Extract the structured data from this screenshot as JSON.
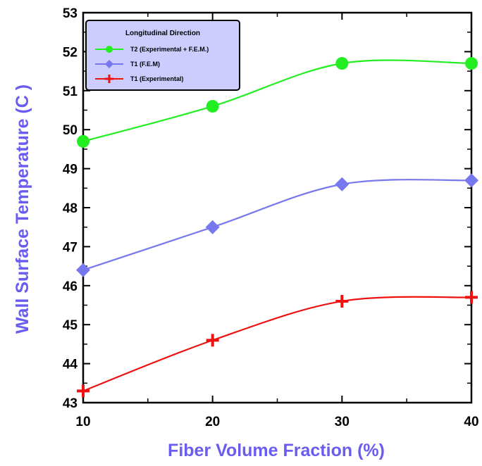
{
  "chart_data": {
    "type": "line",
    "title": "",
    "xlabel": "Fiber Volume Fraction (%)",
    "ylabel": "Wall Surface Temperature (C )",
    "xlim": [
      10,
      40
    ],
    "ylim": [
      43,
      53
    ],
    "x_ticks": [
      "10",
      "20",
      "30",
      "40"
    ],
    "y_ticks": [
      "43",
      "44",
      "45",
      "46",
      "47",
      "48",
      "49",
      "50",
      "51",
      "52",
      "53"
    ],
    "grid": false,
    "legend": {
      "title": "Longitudinal Direction",
      "position": "top-left"
    },
    "colors": {
      "axis_title": "#6a5cf0",
      "legend_bg": "#ccccff"
    },
    "series": [
      {
        "name": "T2 (Experimental + F.E.M.)",
        "marker": "circle",
        "color": "#22ee22",
        "x": [
          10,
          20,
          30,
          40
        ],
        "y": [
          49.7,
          50.6,
          51.7,
          51.7
        ]
      },
      {
        "name": "T1 (F.E.M)",
        "marker": "diamond",
        "color": "#7777ee",
        "x": [
          10,
          20,
          30,
          40
        ],
        "y": [
          46.4,
          47.5,
          48.6,
          48.7
        ]
      },
      {
        "name": "T1 (Experimental)",
        "marker": "plus",
        "color": "#ee1111",
        "x": [
          10,
          20,
          30,
          40
        ],
        "y": [
          43.3,
          44.6,
          45.6,
          45.7
        ]
      }
    ]
  }
}
